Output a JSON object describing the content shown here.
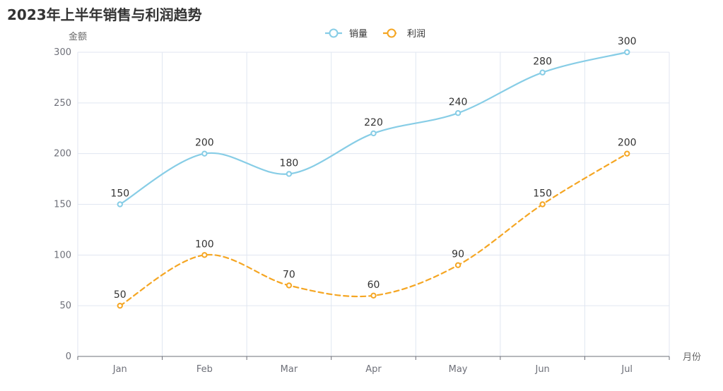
{
  "chart_data": {
    "type": "line",
    "title": "2023年上半年销售与利润趋势",
    "xlabel": "月份",
    "ylabel": "金额",
    "categories": [
      "Jan",
      "Feb",
      "Mar",
      "Apr",
      "May",
      "Jun",
      "Jul"
    ],
    "ylim": [
      0,
      300
    ],
    "yticks": [
      0,
      50,
      100,
      150,
      200,
      250,
      300
    ],
    "grid": true,
    "legend_position": "top-center",
    "series": [
      {
        "name": "销量",
        "values": [
          150,
          200,
          180,
          220,
          240,
          280,
          300
        ],
        "color": "#87cde6",
        "line_style": "solid",
        "smooth": true,
        "show_labels": true
      },
      {
        "name": "利润",
        "values": [
          50,
          100,
          70,
          60,
          90,
          150,
          200
        ],
        "color": "#f5a623",
        "line_style": "dashed",
        "smooth": true,
        "show_labels": true
      }
    ]
  },
  "colors": {
    "axis_line": "#6e7079",
    "grid_line": "#e0e6f1",
    "text": "#333333",
    "muted_text": "#6e7079",
    "background": "#ffffff"
  }
}
